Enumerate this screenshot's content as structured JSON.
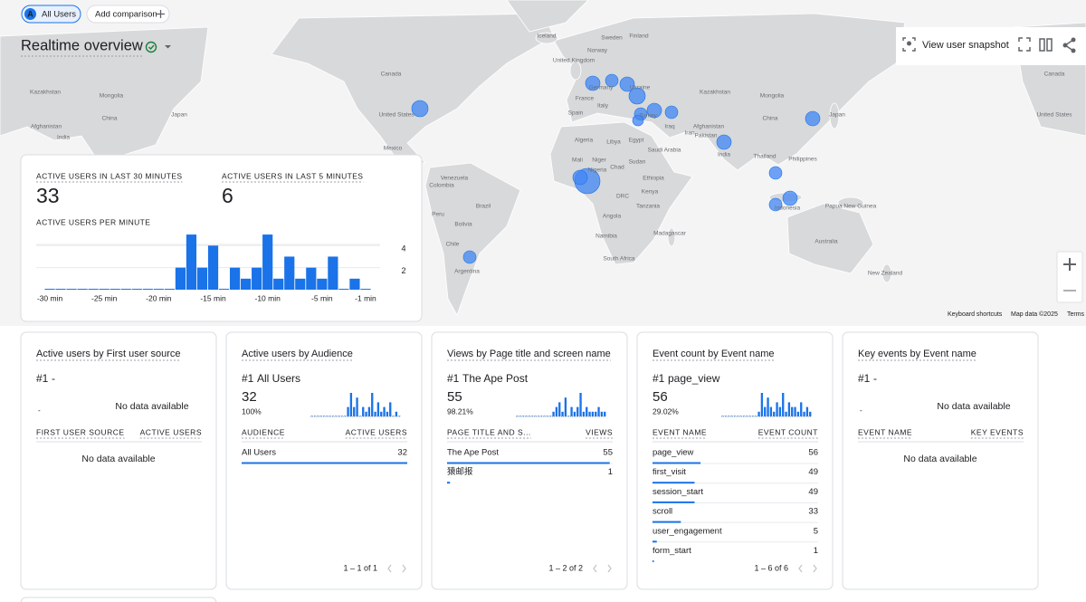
{
  "top_bar": {
    "segment_letter": "A",
    "segment": "All Users",
    "add_comparison": "Add comparison"
  },
  "header": {
    "title": "Realtime overview",
    "snapshot": "View user snapshot"
  },
  "map": {
    "labels": [
      "Iceland",
      "Sweden",
      "Finland",
      "Norway",
      "United Kingdom",
      "Germany",
      "Ukraine",
      "France",
      "Italy",
      "Spain",
      "Turkey",
      "Algeria",
      "Libya",
      "Egypt",
      "Iraq",
      "Iran",
      "Saudi Arabia",
      "Mali",
      "Niger",
      "Chad",
      "Sudan",
      "Nigeria",
      "Ethiopia",
      "DRC",
      "Kenya",
      "Tanzania",
      "Angola",
      "Namibia",
      "South Africa",
      "Madagascar",
      "Canada",
      "United States",
      "Mexico",
      "Venezuela",
      "Colombia",
      "Peru",
      "Brazil",
      "Bolivia",
      "Chile",
      "Argentina",
      "Kazakhstan",
      "Mongolia",
      "China",
      "Japan",
      "India",
      "Pakistan",
      "Afghanistan",
      "Thailand",
      "Indonesia",
      "Papua New Guinea",
      "Australia",
      "New Zealand",
      "Philippines",
      "Kazakhstan",
      "Mongolia",
      "China",
      "Japan",
      "Afghanistan",
      "India",
      "Canada",
      "United States"
    ],
    "footer": [
      "Keyboard shortcuts",
      "Map data ©2025",
      "Terms"
    ]
  },
  "summary": {
    "metric_30_label": "ACTIVE USERS IN LAST 30 MINUTES",
    "metric_30_value": 33,
    "metric_5_label": "ACTIVE USERS IN LAST 5 MINUTES",
    "metric_5_value": 6,
    "chart_label": "ACTIVE USERS PER MINUTE",
    "chart_data": {
      "type": "bar",
      "x": [
        -30,
        -29,
        -28,
        -27,
        -26,
        -25,
        -24,
        -23,
        -22,
        -21,
        -20,
        -19,
        -18,
        -17,
        -16,
        -15,
        -14,
        -13,
        -12,
        -11,
        -10,
        -9,
        -8,
        -7,
        -6,
        -5,
        -4,
        -3,
        -2,
        -1
      ],
      "values": [
        0,
        0,
        0,
        0,
        0,
        0,
        0,
        0,
        0,
        0,
        0,
        0,
        2,
        5,
        2,
        4,
        0,
        2,
        1,
        2,
        5,
        1,
        3,
        1,
        2,
        1,
        3,
        0,
        1,
        0
      ],
      "color": "#1a73e8",
      "xlim": [
        -30.5,
        -0.5
      ],
      "xticks": [
        {
          "value": -30,
          "label": "-30 min"
        },
        {
          "value": -25,
          "label": "-25 min"
        },
        {
          "value": -20,
          "label": "-20 min"
        },
        {
          "value": -15,
          "label": "-15 min"
        },
        {
          "value": -10,
          "label": "-10 min"
        },
        {
          "value": -5,
          "label": "-5 min"
        },
        {
          "value": -1,
          "label": "-1 min"
        }
      ],
      "ylim": [
        0,
        5.5
      ],
      "yticks": [
        2,
        4
      ],
      "grid": true
    }
  },
  "cards": [
    {
      "title": "Active users by First user source",
      "rank": "#1",
      "item": "-",
      "dash": "-",
      "empty_text": "No data available",
      "columns": [
        "FIRST USER SOURCE",
        "ACTIVE USERS"
      ],
      "rows": [],
      "table_empty": "No data available"
    },
    {
      "title": "Active users by Audience",
      "rank": "#1",
      "item": "All Users",
      "value": 32,
      "percent": "100%",
      "spark": [
        0,
        0,
        0,
        0,
        0,
        0,
        0,
        0,
        0,
        0,
        0,
        0,
        2,
        5,
        2,
        4,
        0,
        2,
        1,
        2,
        5,
        1,
        3,
        1,
        2,
        1,
        3,
        0,
        1,
        0
      ],
      "columns": [
        "AUDIENCE",
        "ACTIVE USERS"
      ],
      "rows": [
        [
          "All Users",
          32
        ]
      ],
      "pagination": "1 – 1 of 1"
    },
    {
      "title": "Views by Page title and screen name",
      "rank": "#1",
      "item": "The Ape Post",
      "value": 55,
      "percent": "98.21%",
      "spark": [
        0,
        0,
        0,
        0,
        0,
        0,
        0,
        0,
        0,
        0,
        0,
        0,
        1,
        2,
        3,
        1,
        4,
        0,
        2,
        1,
        2,
        5,
        1,
        2,
        1,
        1,
        1,
        2,
        1,
        1
      ],
      "columns": [
        "PAGE TITLE AND S...",
        "VIEWS"
      ],
      "rows": [
        [
          "The Ape Post",
          55
        ],
        [
          "猿邮报",
          1
        ]
      ],
      "pagination": "1 – 2 of 2"
    },
    {
      "title": "Event count by Event name",
      "rank": "#1",
      "item": "page_view",
      "value": 56,
      "percent": "29.02%",
      "spark": [
        0,
        0,
        0,
        0,
        0,
        0,
        0,
        0,
        0,
        0,
        0,
        0,
        1,
        5,
        2,
        4,
        2,
        1,
        3,
        2,
        5,
        1,
        3,
        2,
        2,
        1,
        3,
        1,
        2,
        1
      ],
      "columns": [
        "EVENT NAME",
        "EVENT COUNT"
      ],
      "rows": [
        [
          "page_view",
          56
        ],
        [
          "first_visit",
          49
        ],
        [
          "session_start",
          49
        ],
        [
          "scroll",
          33
        ],
        [
          "user_engagement",
          5
        ],
        [
          "form_start",
          1
        ]
      ],
      "pagination": "1 – 6 of 6"
    },
    {
      "title": "Key events by Event name",
      "rank": "#1",
      "item": "-",
      "dash": "-",
      "empty_text": "No data available",
      "columns": [
        "EVENT NAME",
        "KEY EVENTS"
      ],
      "rows": [],
      "table_empty": "No data available"
    }
  ]
}
